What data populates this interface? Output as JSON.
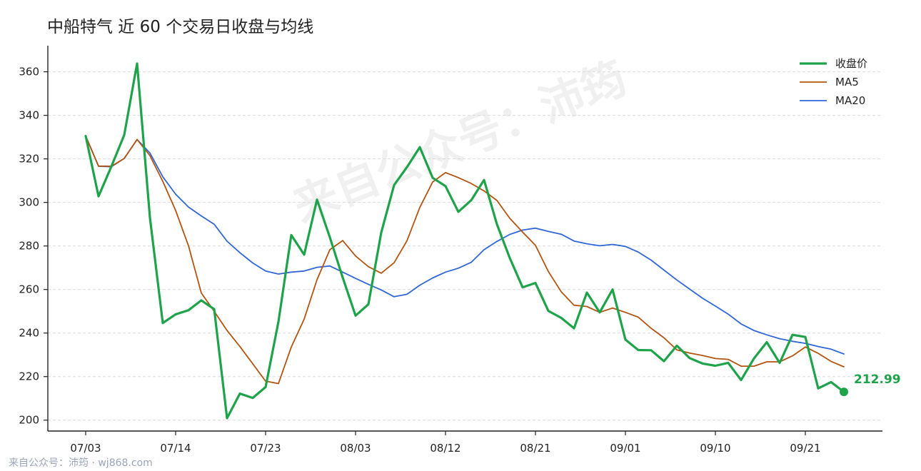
{
  "colors": {
    "close": "#1ea34a",
    "ma5": "#b35410",
    "ma20": "#2f67d8"
  },
  "watermark": "来自公众号：沛筠",
  "footer": "来自公众号：沛筠 · wj868.com",
  "chart_data": {
    "type": "line",
    "title": "中船特气 近 60 个交易日收盘与均线",
    "xlabel": "",
    "ylabel": "",
    "ylim": [
      195,
      372
    ],
    "yticks": [
      200,
      220,
      240,
      260,
      280,
      300,
      320,
      340,
      360
    ],
    "xtick_labels": [
      {
        "index": 0,
        "label": "07/03"
      },
      {
        "index": 7,
        "label": "07/14"
      },
      {
        "index": 14,
        "label": "07/23"
      },
      {
        "index": 21,
        "label": "08/03"
      },
      {
        "index": 28,
        "label": "08/12"
      },
      {
        "index": 35,
        "label": "08/21"
      },
      {
        "index": 42,
        "label": "09/01"
      },
      {
        "index": 49,
        "label": "09/10"
      },
      {
        "index": 56,
        "label": "09/21"
      }
    ],
    "grid": "horizontal",
    "legend_position": "top-right",
    "last_label": "212.99",
    "series": [
      {
        "name": "收盘价",
        "key": "close",
        "values": [
          330.5,
          302.8,
          316.5,
          331.0,
          363.8,
          293.0,
          244.6,
          248.6,
          250.5,
          255.0,
          251.0,
          200.9,
          212.2,
          210.2,
          215.2,
          245.2,
          285.0,
          276.0,
          301.3,
          284.0,
          265.5,
          248.0,
          253.2,
          286.2,
          308.0,
          316.2,
          325.4,
          311.3,
          307.5,
          295.7,
          301.0,
          310.3,
          290.0,
          274.5,
          261.0,
          263.0,
          250.2,
          247.0,
          242.2,
          258.6,
          249.5,
          260.0,
          237.0,
          232.2,
          232.1,
          227.1,
          234.2,
          228.5,
          226.0,
          225.0,
          226.3,
          218.4,
          228.3,
          235.8,
          226.3,
          239.2,
          238.2,
          214.6,
          217.5,
          212.99
        ]
      },
      {
        "name": "MA5",
        "key": "ma5",
        "values": [
          330.5,
          316.7,
          316.6,
          320.2,
          328.9,
          321.5,
          309.7,
          296.3,
          280.1,
          258.4,
          250.0,
          241.2,
          233.8,
          225.9,
          217.9,
          216.8,
          233.6,
          246.4,
          264.5,
          278.3,
          282.5,
          275.4,
          270.5,
          267.5,
          272.3,
          282.4,
          297.7,
          309.4,
          313.7,
          311.4,
          308.7,
          305.3,
          300.9,
          292.7,
          286.4,
          280.3,
          268.3,
          259.0,
          252.8,
          252.2,
          249.5,
          251.5,
          249.5,
          247.3,
          242.2,
          237.8,
          232.3,
          230.8,
          229.7,
          228.3,
          227.9,
          224.8,
          224.8,
          226.8,
          226.8,
          229.5,
          233.6,
          230.7,
          227.0,
          224.5
        ]
      },
      {
        "name": "MA20",
        "key": "ma20",
        "values": [
          330.5,
          316.6,
          316.4,
          320.2,
          328.9,
          322.7,
          311.8,
          303.8,
          297.9,
          293.8,
          290.0,
          282.2,
          276.9,
          272.2,
          268.5,
          267.1,
          268.0,
          268.5,
          270.2,
          270.8,
          268.0,
          265.1,
          262.4,
          259.8,
          256.7,
          257.8,
          262.0,
          265.3,
          268.0,
          269.8,
          272.5,
          278.3,
          282.1,
          285.3,
          287.3,
          288.2,
          286.7,
          285.4,
          282.3,
          281.0,
          280.1,
          280.7,
          279.8,
          277.2,
          273.5,
          268.9,
          264.4,
          260.2,
          256.0,
          252.4,
          248.7,
          244.2,
          241.2,
          239.2,
          237.4,
          236.2,
          235.3,
          233.8,
          232.6,
          230.4
        ]
      }
    ]
  }
}
